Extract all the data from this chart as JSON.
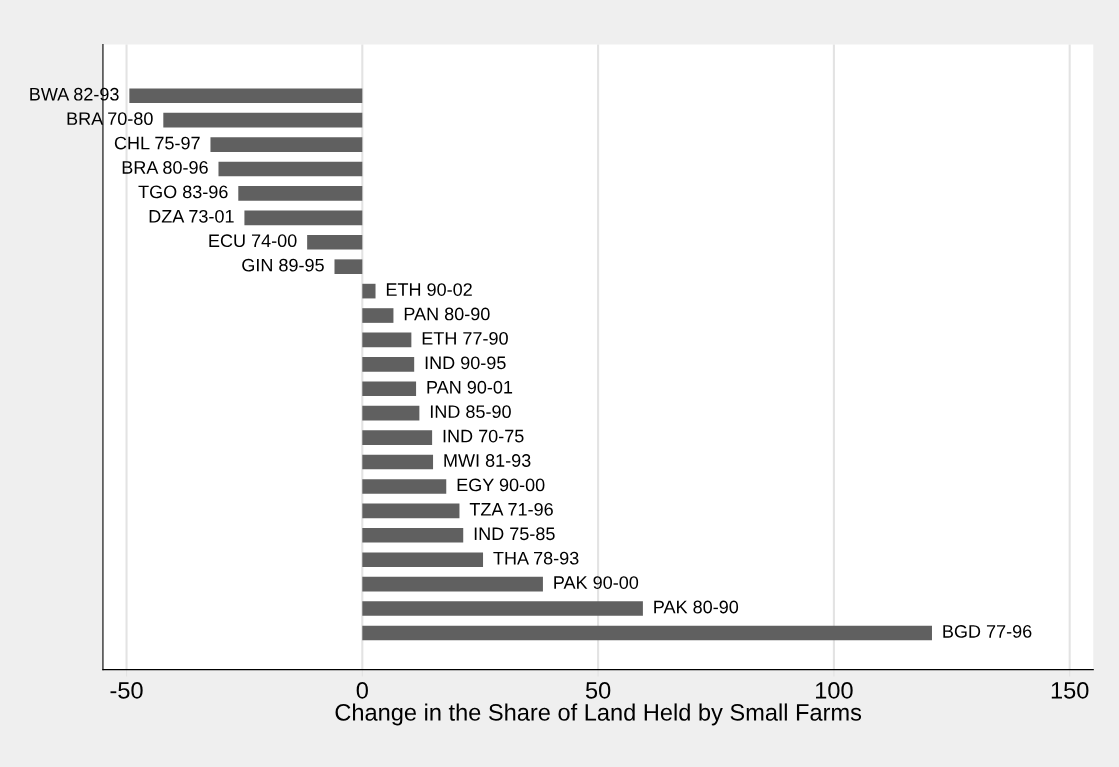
{
  "chart_data": {
    "type": "bar",
    "orientation": "horizontal",
    "xlabel": "Change in the Share of Land Held by Small Farms",
    "categories": [
      "BWA 82-93",
      "BRA 70-80",
      "CHL 75-97",
      "BRA 80-96",
      "TGO 83-96",
      "DZA 73-01",
      "ECU 74-00",
      "GIN 89-95",
      "ETH 90-02",
      "PAN 80-90",
      "ETH 77-90",
      "IND 90-95",
      "PAN 90-01",
      "IND 85-90",
      "IND 70-75",
      "MWI 81-93",
      "EGY 90-00",
      "TZA 71-96",
      "IND 75-85",
      "THA 78-93",
      "PAK 90-00",
      "PAK 80-90",
      "BGD 77-96"
    ],
    "values": [
      -49.4,
      -42.2,
      -32.2,
      -30.5,
      -26.3,
      -25,
      -11.7,
      -5.9,
      2.8,
      6.6,
      10.4,
      11,
      11.4,
      12.1,
      14.8,
      15,
      17.8,
      20.6,
      21.4,
      25.6,
      38.3,
      59.5,
      120.8
    ],
    "color": "#606060",
    "xlim": [
      -55,
      155
    ],
    "xticks": [
      -50,
      0,
      50,
      100,
      150
    ],
    "grid": "x"
  }
}
